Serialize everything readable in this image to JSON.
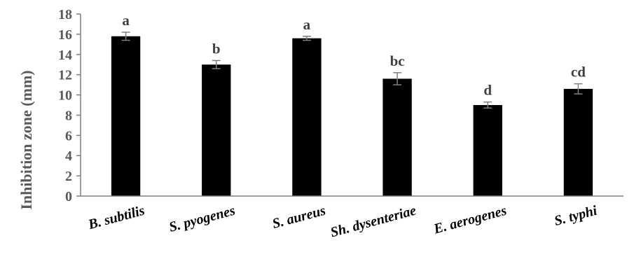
{
  "chart_data": {
    "type": "bar",
    "title": "",
    "xlabel": "",
    "ylabel": "Inhibition zone (mm)",
    "ylim": [
      0,
      18
    ],
    "yticks": [
      "0",
      "2",
      "4",
      "6",
      "8",
      "10",
      "12",
      "14",
      "16",
      "18"
    ],
    "categories": [
      "B. subtilis",
      "S. pyogenes",
      "S. aureus",
      "Sh. dysenteriae",
      "E. aerogenes",
      "S. typhi"
    ],
    "values": [
      15.8,
      13.0,
      15.6,
      11.6,
      9.0,
      10.6
    ],
    "errors": [
      0.4,
      0.4,
      0.2,
      0.6,
      0.3,
      0.5
    ],
    "significance_labels": [
      "a",
      "b",
      "a",
      "bc",
      "d",
      "cd"
    ],
    "bar_color": "#000000",
    "grid": false,
    "legend": "none"
  }
}
